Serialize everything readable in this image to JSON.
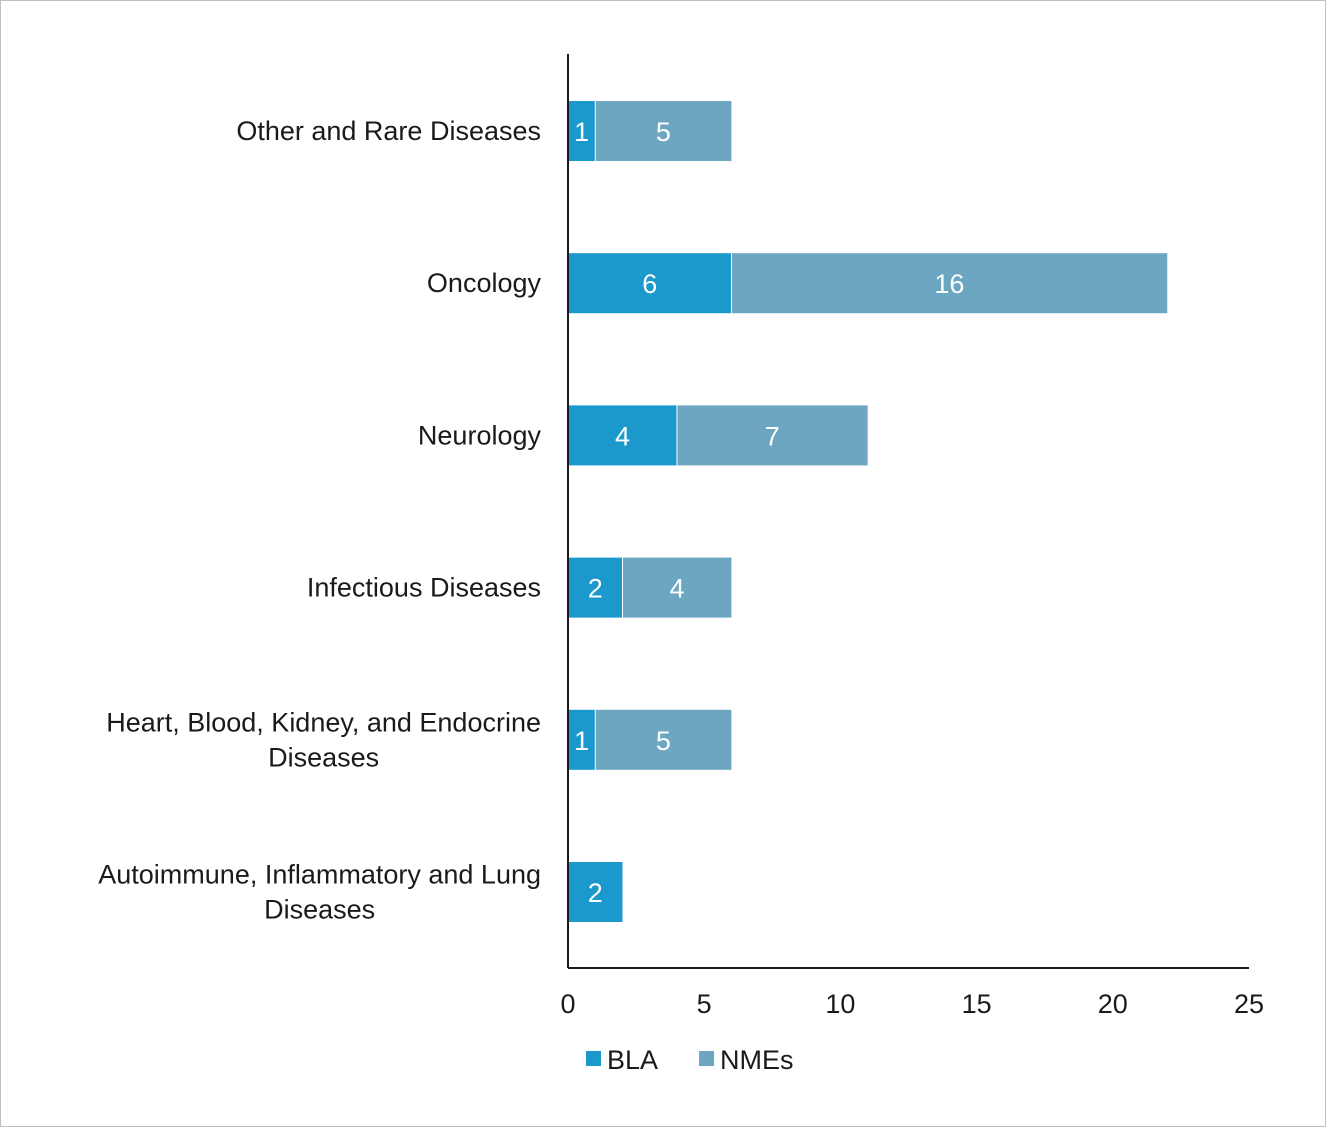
{
  "chart_data": {
    "type": "bar",
    "orientation": "horizontal",
    "stacked": true,
    "title": "",
    "xlabel": "",
    "ylabel": "",
    "categories": [
      "Other and Rare Diseases",
      "Oncology",
      "Neurology",
      "Infectious Diseases",
      "Heart, Blood, Kidney, and Endocrine Diseases",
      "Autoimmune, Inflammatory and Lung Diseases"
    ],
    "category_lines": [
      [
        "Other and Rare Diseases"
      ],
      [
        "Oncology"
      ],
      [
        "Neurology"
      ],
      [
        "Infectious Diseases"
      ],
      [
        "Heart, Blood, Kidney, and Endocrine",
        "Diseases"
      ],
      [
        "Autoimmune, Inflammatory and Lung",
        "Diseases"
      ]
    ],
    "series": [
      {
        "name": "BLA",
        "color": "#1b98cc",
        "values": [
          1,
          6,
          4,
          2,
          1,
          2
        ]
      },
      {
        "name": "NMEs",
        "color": "#6ca6c0",
        "values": [
          5,
          16,
          7,
          4,
          5,
          0
        ]
      }
    ],
    "xlim": [
      0,
      25
    ],
    "xticks": [
      "0",
      "5",
      "10",
      "15",
      "20",
      "25"
    ],
    "grid": false,
    "legend_position": "bottom"
  }
}
